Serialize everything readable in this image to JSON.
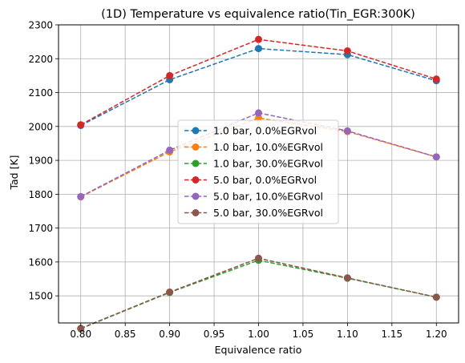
{
  "chart_data": {
    "type": "line",
    "title": "(1D) Temperature vs equivalence ratio(Tin_EGR:300K)",
    "xlabel": "Equivalence ratio",
    "ylabel": "Tad [K]",
    "xlim": [
      0.775,
      1.225
    ],
    "ylim": [
      1420,
      2300
    ],
    "xticks": [
      0.8,
      0.85,
      0.9,
      0.95,
      1.0,
      1.05,
      1.1,
      1.15,
      1.2
    ],
    "xtick_labels": [
      "0.80",
      "0.85",
      "0.90",
      "0.95",
      "1.00",
      "1.05",
      "1.10",
      "1.15",
      "1.20"
    ],
    "yticks": [
      1500,
      1600,
      1700,
      1800,
      1900,
      2000,
      2100,
      2200,
      2300
    ],
    "ytick_labels": [
      "1500",
      "1600",
      "1700",
      "1800",
      "1900",
      "2000",
      "2100",
      "2200",
      "2300"
    ],
    "grid": true,
    "legend_position": "center",
    "x": [
      0.8,
      0.9,
      1.0,
      1.1,
      1.2
    ],
    "series": [
      {
        "name": "1.0 bar, 0.0%EGRvol",
        "color": "#1f77b4",
        "values": [
          2003,
          2138,
          2230,
          2212,
          2135
        ]
      },
      {
        "name": "1.0 bar, 10.0%EGRvol",
        "color": "#ff7f0e",
        "values": [
          1792,
          1925,
          2025,
          1985,
          1910
        ]
      },
      {
        "name": "1.0 bar, 30.0%EGRvol",
        "color": "#2ca02c",
        "values": [
          1403,
          1510,
          1605,
          1552,
          1496
        ]
      },
      {
        "name": "5.0 bar, 0.0%EGRvol",
        "color": "#d62728",
        "values": [
          2005,
          2150,
          2257,
          2223,
          2140
        ]
      },
      {
        "name": "5.0 bar, 10.0%EGRvol",
        "color": "#9467bd",
        "values": [
          1793,
          1930,
          2040,
          1987,
          1910
        ]
      },
      {
        "name": "5.0 bar, 30.0%EGRvol",
        "color": "#8c564b",
        "values": [
          1404,
          1511,
          1611,
          1553,
          1496
        ]
      }
    ]
  }
}
